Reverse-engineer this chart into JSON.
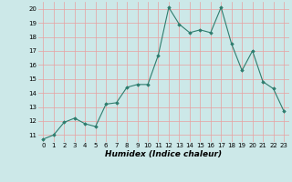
{
  "x": [
    0,
    1,
    2,
    3,
    4,
    5,
    6,
    7,
    8,
    9,
    10,
    11,
    12,
    13,
    14,
    15,
    16,
    17,
    18,
    19,
    20,
    21,
    22,
    23
  ],
  "y": [
    10.7,
    11.0,
    11.9,
    12.2,
    11.8,
    11.6,
    13.2,
    13.3,
    14.4,
    14.6,
    14.6,
    16.7,
    20.1,
    18.9,
    18.3,
    18.5,
    18.3,
    20.1,
    17.5,
    15.6,
    17.0,
    14.8,
    14.3,
    12.7
  ],
  "xlabel": "Humidex (Indice chaleur)",
  "ylim": [
    10.5,
    20.5
  ],
  "xlim": [
    -0.5,
    23.5
  ],
  "yticks": [
    11,
    12,
    13,
    14,
    15,
    16,
    17,
    18,
    19,
    20
  ],
  "xticks": [
    0,
    1,
    2,
    3,
    4,
    5,
    6,
    7,
    8,
    9,
    10,
    11,
    12,
    13,
    14,
    15,
    16,
    17,
    18,
    19,
    20,
    21,
    22,
    23
  ],
  "line_color": "#2e7d6e",
  "bg_color": "#cce8e8",
  "grid_color": "#e8a0a0",
  "marker": "D",
  "markersize": 1.8,
  "linewidth": 0.8,
  "tick_fontsize": 5.0,
  "xlabel_fontsize": 6.5
}
